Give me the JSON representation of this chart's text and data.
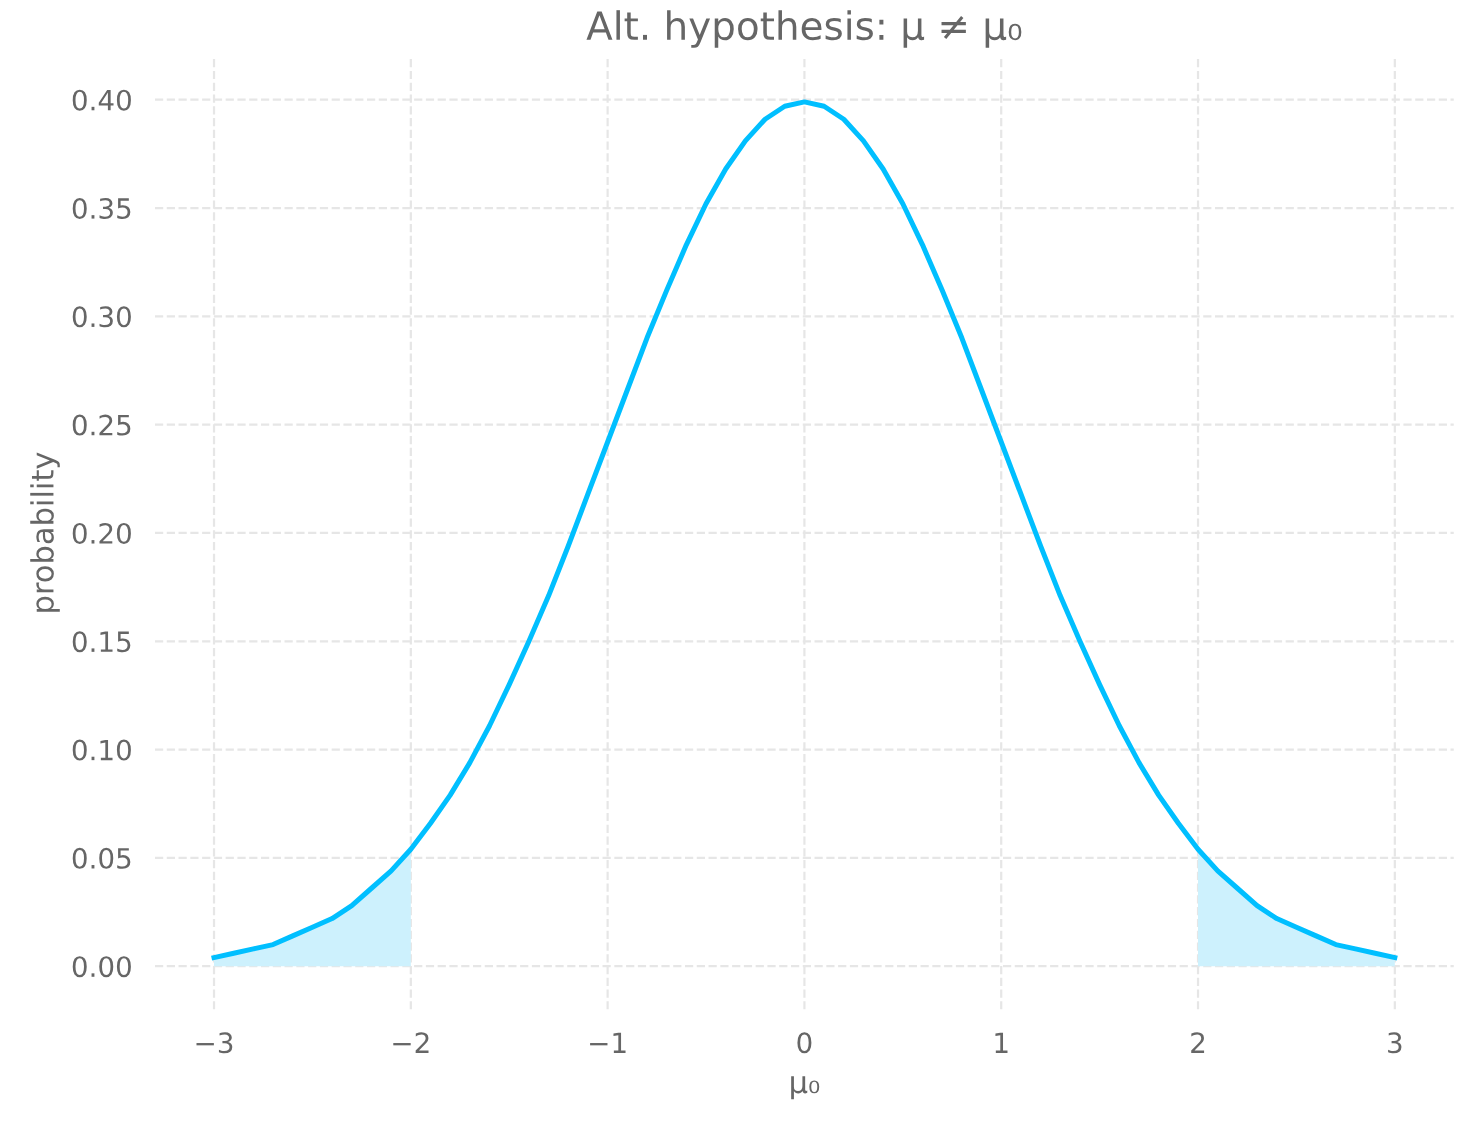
{
  "chart_data": {
    "type": "line",
    "title": "Alt. hypothesis: μ ≠ μ₀",
    "xlabel": "μ₀",
    "ylabel": "probability",
    "series": [
      {
        "color": "#00bfff",
        "x": [
          -3,
          -2.9,
          -2.8,
          -2.7,
          -2.6,
          -2.5,
          -2.4,
          -2.3,
          -2.2,
          -2.1,
          -2,
          -1.9,
          -1.8,
          -1.7,
          -1.6,
          -1.5,
          -1.4,
          -1.3,
          -1.2,
          -1.1,
          -1,
          -0.9,
          -0.8,
          -0.7,
          -0.6,
          -0.5,
          -0.4,
          -0.3,
          -0.2,
          -0.1,
          0,
          0.1,
          0.2,
          0.3,
          0.4,
          0.5,
          0.6,
          0.7,
          0.8,
          0.9,
          1,
          1.1,
          1.2,
          1.3,
          1.4,
          1.5,
          1.6,
          1.7,
          1.8,
          1.9,
          2,
          2.1,
          2.2,
          2.3,
          2.4,
          2.5,
          2.6,
          2.7,
          2.8,
          2.9,
          3
        ],
        "values": [
          0.004,
          0.006,
          0.008,
          0.01,
          0.014,
          0.018,
          0.022,
          0.028,
          0.036,
          0.044,
          0.054,
          0.066,
          0.079,
          0.094,
          0.111,
          0.13,
          0.15,
          0.171,
          0.194,
          0.218,
          0.242,
          0.266,
          0.29,
          0.312,
          0.333,
          0.352,
          0.368,
          0.381,
          0.391,
          0.397,
          0.399,
          0.397,
          0.391,
          0.381,
          0.368,
          0.352,
          0.333,
          0.312,
          0.29,
          0.266,
          0.242,
          0.218,
          0.194,
          0.171,
          0.15,
          0.13,
          0.111,
          0.094,
          0.079,
          0.066,
          0.054,
          0.044,
          0.036,
          0.028,
          0.022,
          0.018,
          0.014,
          0.01,
          0.008,
          0.006,
          0.004
        ]
      },
      {
        "type": "area",
        "color": "#cdf1fd",
        "x": [
          -3,
          -2.8,
          -2.6,
          -2.4,
          -2.2,
          -2
        ],
        "values": [
          0.004,
          0.008,
          0.014,
          0.022,
          0.036,
          0.054
        ]
      },
      {
        "type": "area",
        "color": "#cdf1fd",
        "x": [
          2,
          2.2,
          2.4,
          2.6,
          2.8,
          3
        ],
        "values": [
          0.054,
          0.036,
          0.022,
          0.014,
          0.008,
          0.004
        ]
      }
    ],
    "xlim": [
      -3.3,
      3.3
    ],
    "xticks": [
      {
        "value": -3,
        "label": "−3"
      },
      {
        "value": -2,
        "label": "−2"
      },
      {
        "value": -1,
        "label": "−1"
      },
      0,
      1,
      2,
      3
    ],
    "ylim": [
      -0.02,
      0.42
    ],
    "yticks": [
      {
        "value": 0,
        "label": "0.00"
      },
      {
        "value": 0.05,
        "label": "0.05"
      },
      {
        "value": 0.1,
        "label": "0.10"
      },
      {
        "value": 0.15,
        "label": "0.15"
      },
      {
        "value": 0.2,
        "label": "0.20"
      },
      {
        "value": 0.25,
        "label": "0.25"
      },
      {
        "value": 0.3,
        "label": "0.30"
      },
      {
        "value": 0.35,
        "label": "0.35"
      },
      {
        "value": 0.4,
        "label": "0.40"
      }
    ],
    "grid": true,
    "line_style": "solid",
    "marker": "none"
  }
}
